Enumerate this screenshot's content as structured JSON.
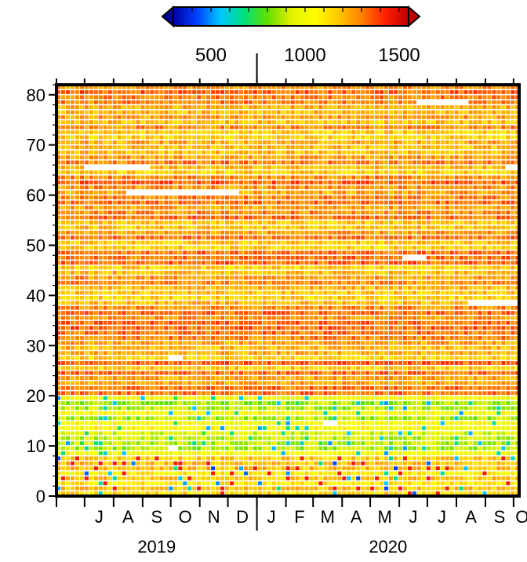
{
  "chart_data": {
    "type": "heatmap",
    "title": "",
    "xlabel": "",
    "ylabel": "",
    "x_range": [
      "2019-06-01",
      "2020-10-07"
    ],
    "ylim": [
      0,
      82
    ],
    "y_ticks": [
      0,
      10,
      20,
      30,
      40,
      50,
      60,
      70,
      80
    ],
    "month_ticks": [
      {
        "label": "J",
        "date": "2019-06-01"
      },
      {
        "label": "J",
        "date": "2019-07-01"
      },
      {
        "label": "A",
        "date": "2019-08-01"
      },
      {
        "label": "S",
        "date": "2019-09-01"
      },
      {
        "label": "O",
        "date": "2019-10-01"
      },
      {
        "label": "N",
        "date": "2019-11-01"
      },
      {
        "label": "D",
        "date": "2019-12-01"
      },
      {
        "label": "J",
        "date": "2020-01-01"
      },
      {
        "label": "F",
        "date": "2020-02-01"
      },
      {
        "label": "M",
        "date": "2020-03-01"
      },
      {
        "label": "A",
        "date": "2020-04-01"
      },
      {
        "label": "M",
        "date": "2020-05-01"
      },
      {
        "label": "J",
        "date": "2020-06-01"
      },
      {
        "label": "J",
        "date": "2020-07-01"
      },
      {
        "label": "A",
        "date": "2020-08-01"
      },
      {
        "label": "S",
        "date": "2020-09-01"
      },
      {
        "label": "O",
        "date": "2020-10-01"
      }
    ],
    "year_labels": [
      {
        "label": "2019",
        "from": "2019-06-01",
        "to": "2020-01-01"
      },
      {
        "label": "2020",
        "from": "2020-01-01",
        "to": "2020-10-07"
      }
    ],
    "year_divider": "2020-01-01",
    "colorbar": {
      "min": 300,
      "max": 1550,
      "ticks": [
        500,
        1000,
        1500
      ],
      "colors": [
        "#0000a0",
        "#0040ff",
        "#00c8ff",
        "#00e080",
        "#60e000",
        "#e0f000",
        "#ffff00",
        "#ffc800",
        "#ff8000",
        "#ff2000",
        "#c00000"
      ],
      "extend": "both"
    },
    "row_pattern": [
      {
        "y_from": 0,
        "y_to": 8,
        "typical_value": 1100,
        "note_colors": "mixed"
      },
      {
        "y_from": 8,
        "y_to": 20,
        "typical_value": 950
      },
      {
        "y_from": 20,
        "y_to": 82,
        "typical_value": 1250
      }
    ],
    "missing_segments": [
      {
        "row": 65,
        "from": "2019-07-01",
        "to": "2019-09-05"
      },
      {
        "row": 65,
        "from": "2020-09-20",
        "to": "2020-10-07"
      },
      {
        "row": 60,
        "from": "2019-08-15",
        "to": "2019-12-10"
      },
      {
        "row": 78,
        "from": "2020-06-20",
        "to": "2020-08-10"
      },
      {
        "row": 47,
        "from": "2020-06-01",
        "to": "2020-06-25"
      },
      {
        "row": 38,
        "from": "2020-08-10",
        "to": "2020-10-07"
      },
      {
        "row": 27,
        "from": "2019-09-25",
        "to": "2019-10-10"
      },
      {
        "row": 14,
        "from": "2020-03-10",
        "to": "2020-03-25"
      },
      {
        "row": 9,
        "from": "2019-09-25",
        "to": "2019-10-08"
      }
    ]
  }
}
